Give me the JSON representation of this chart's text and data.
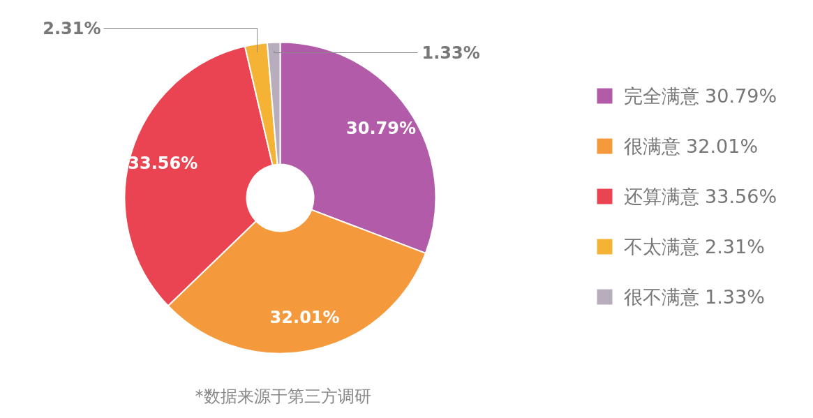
{
  "chart_data": {
    "type": "donut",
    "categories": [
      "完全满意",
      "很满意",
      "还算满意",
      "不太满意",
      "很不满意"
    ],
    "values": [
      30.79,
      32.01,
      33.56,
      2.31,
      1.33
    ],
    "value_labels": [
      "30.79%",
      "32.01%",
      "33.56%",
      "2.31%",
      "1.33%"
    ],
    "colors": [
      "#b25ca9",
      "#f59a3c",
      "#ea4452",
      "#f5b335",
      "#b8adbd"
    ],
    "legend": "right",
    "annotations": [
      "*数据来源于第三方调研"
    ]
  }
}
